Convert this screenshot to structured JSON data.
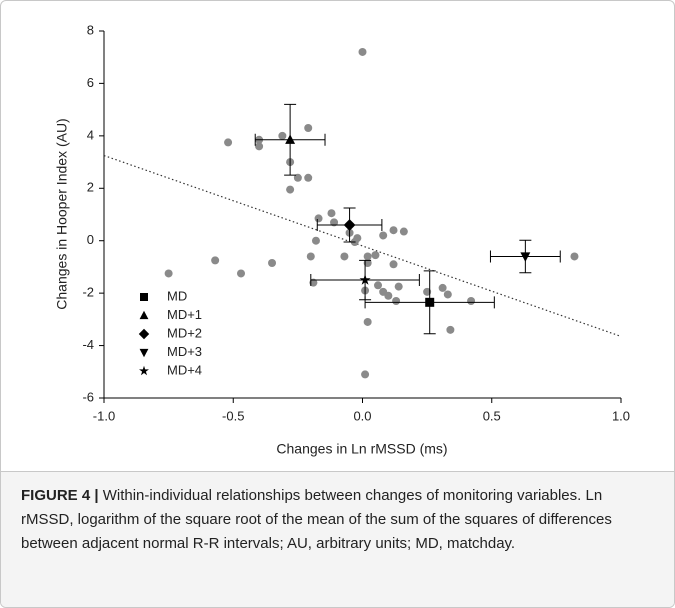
{
  "chart_data": {
    "type": "scatter",
    "x_label": "Changes in Ln rMSSD (ms)",
    "y_label": "Changes in Hooper Index (AU)",
    "xlim": [
      -1.0,
      1.0
    ],
    "xticks": [
      {
        "value": -1.0,
        "label": "-1.0"
      },
      -0.5,
      {
        "value": 0.0,
        "label": "0.0"
      },
      0.5,
      {
        "value": 1.0,
        "label": "1.0"
      }
    ],
    "ylim": [
      -6,
      8
    ],
    "yticks": [
      -6,
      -4,
      -2,
      0,
      2,
      4,
      6,
      8
    ],
    "points": {
      "color": "#8a8a8a",
      "x": [
        0.0,
        -0.52,
        -0.4,
        -0.4,
        -0.31,
        -0.28,
        -0.28,
        -0.25,
        -0.21,
        -0.21,
        -0.17,
        -0.12,
        -0.11,
        -0.05,
        -0.02,
        -0.03,
        -0.18,
        -0.2,
        -0.19,
        -0.75,
        -0.57,
        -0.47,
        -0.35,
        -0.07,
        0.02,
        0.05,
        0.08,
        0.12,
        0.16,
        0.12,
        0.06,
        0.01,
        0.08,
        0.1,
        0.13,
        0.14,
        0.25,
        0.31,
        0.33,
        0.42,
        0.34,
        0.02,
        0.01,
        0.82,
        0.02
      ],
      "y": [
        7.2,
        3.75,
        3.85,
        3.6,
        4.0,
        3.0,
        1.95,
        2.4,
        2.4,
        4.3,
        0.85,
        1.05,
        0.7,
        0.3,
        0.1,
        -0.05,
        0.0,
        -0.6,
        -1.6,
        -1.25,
        -0.75,
        -1.25,
        -0.85,
        -0.6,
        -0.6,
        -0.55,
        0.2,
        0.4,
        0.35,
        -0.9,
        -1.7,
        -1.9,
        -1.95,
        -2.1,
        -2.3,
        -1.75,
        -1.95,
        -1.8,
        -2.05,
        -2.3,
        -3.4,
        -3.1,
        -5.1,
        -0.6,
        -0.85
      ]
    },
    "series": [
      {
        "name": "MD",
        "marker": "square",
        "color": "#000000",
        "x": 0.26,
        "y": -2.35,
        "xerr": 0.25,
        "yerr": 1.2
      },
      {
        "name": "MD+1",
        "marker": "triangle",
        "color": "#000000",
        "x": -0.28,
        "y": 3.85,
        "xerr": 0.135,
        "yerr": 1.35
      },
      {
        "name": "MD+2",
        "marker": "diamond",
        "color": "#000000",
        "x": -0.05,
        "y": 0.6,
        "xerr": 0.125,
        "yerr": 0.65
      },
      {
        "name": "MD+3",
        "marker": "triangle-down",
        "color": "#000000",
        "x": 0.63,
        "y": -0.6,
        "xerr": 0.135,
        "yerr": 0.62
      },
      {
        "name": "MD+4",
        "marker": "star",
        "color": "#000000",
        "x": 0.01,
        "y": -1.5,
        "xerr": 0.21,
        "yerr": 0.75
      }
    ],
    "trend_line": {
      "x": [
        -1.0,
        1.0
      ],
      "y": [
        3.25,
        -3.65
      ],
      "color": "#333333"
    }
  },
  "caption": {
    "label": "FIGURE 4 |",
    "text": "Within-individual relationships between changes of monitoring variables. Ln rMSSD, logarithm of the square root of the mean of the sum of the squares of differences between adjacent normal R-R intervals; AU, arbitrary units; MD, matchday."
  }
}
